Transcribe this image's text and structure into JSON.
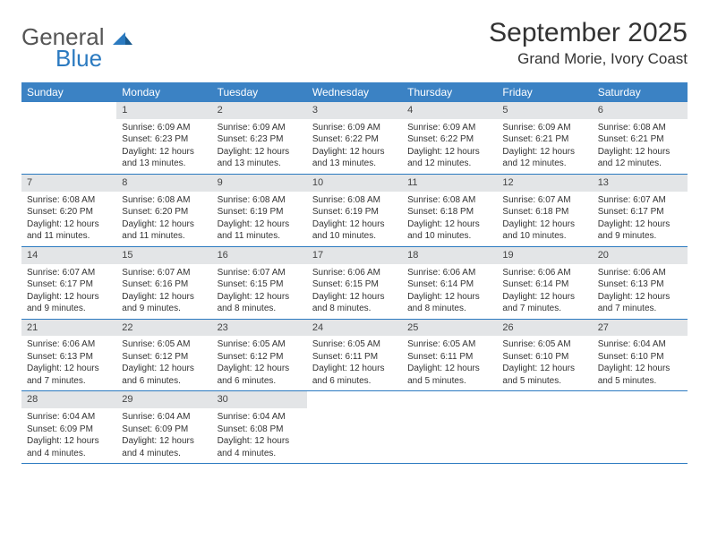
{
  "logo": {
    "word1": "General",
    "word2": "Blue"
  },
  "title": "September 2025",
  "location": "Grand Morie, Ivory Coast",
  "colors": {
    "header_bg": "#3b82c4",
    "header_text": "#ffffff",
    "daynum_bg": "#e3e5e7",
    "week_border": "#2b7ac0",
    "logo_gray": "#555555",
    "logo_blue": "#2b7ac0",
    "text": "#333333"
  },
  "day_names": [
    "Sunday",
    "Monday",
    "Tuesday",
    "Wednesday",
    "Thursday",
    "Friday",
    "Saturday"
  ],
  "weeks": [
    [
      {
        "empty": true
      },
      {
        "day": "1",
        "sunrise": "Sunrise: 6:09 AM",
        "sunset": "Sunset: 6:23 PM",
        "daylight": "Daylight: 12 hours and 13 minutes."
      },
      {
        "day": "2",
        "sunrise": "Sunrise: 6:09 AM",
        "sunset": "Sunset: 6:23 PM",
        "daylight": "Daylight: 12 hours and 13 minutes."
      },
      {
        "day": "3",
        "sunrise": "Sunrise: 6:09 AM",
        "sunset": "Sunset: 6:22 PM",
        "daylight": "Daylight: 12 hours and 13 minutes."
      },
      {
        "day": "4",
        "sunrise": "Sunrise: 6:09 AM",
        "sunset": "Sunset: 6:22 PM",
        "daylight": "Daylight: 12 hours and 12 minutes."
      },
      {
        "day": "5",
        "sunrise": "Sunrise: 6:09 AM",
        "sunset": "Sunset: 6:21 PM",
        "daylight": "Daylight: 12 hours and 12 minutes."
      },
      {
        "day": "6",
        "sunrise": "Sunrise: 6:08 AM",
        "sunset": "Sunset: 6:21 PM",
        "daylight": "Daylight: 12 hours and 12 minutes."
      }
    ],
    [
      {
        "day": "7",
        "sunrise": "Sunrise: 6:08 AM",
        "sunset": "Sunset: 6:20 PM",
        "daylight": "Daylight: 12 hours and 11 minutes."
      },
      {
        "day": "8",
        "sunrise": "Sunrise: 6:08 AM",
        "sunset": "Sunset: 6:20 PM",
        "daylight": "Daylight: 12 hours and 11 minutes."
      },
      {
        "day": "9",
        "sunrise": "Sunrise: 6:08 AM",
        "sunset": "Sunset: 6:19 PM",
        "daylight": "Daylight: 12 hours and 11 minutes."
      },
      {
        "day": "10",
        "sunrise": "Sunrise: 6:08 AM",
        "sunset": "Sunset: 6:19 PM",
        "daylight": "Daylight: 12 hours and 10 minutes."
      },
      {
        "day": "11",
        "sunrise": "Sunrise: 6:08 AM",
        "sunset": "Sunset: 6:18 PM",
        "daylight": "Daylight: 12 hours and 10 minutes."
      },
      {
        "day": "12",
        "sunrise": "Sunrise: 6:07 AM",
        "sunset": "Sunset: 6:18 PM",
        "daylight": "Daylight: 12 hours and 10 minutes."
      },
      {
        "day": "13",
        "sunrise": "Sunrise: 6:07 AM",
        "sunset": "Sunset: 6:17 PM",
        "daylight": "Daylight: 12 hours and 9 minutes."
      }
    ],
    [
      {
        "day": "14",
        "sunrise": "Sunrise: 6:07 AM",
        "sunset": "Sunset: 6:17 PM",
        "daylight": "Daylight: 12 hours and 9 minutes."
      },
      {
        "day": "15",
        "sunrise": "Sunrise: 6:07 AM",
        "sunset": "Sunset: 6:16 PM",
        "daylight": "Daylight: 12 hours and 9 minutes."
      },
      {
        "day": "16",
        "sunrise": "Sunrise: 6:07 AM",
        "sunset": "Sunset: 6:15 PM",
        "daylight": "Daylight: 12 hours and 8 minutes."
      },
      {
        "day": "17",
        "sunrise": "Sunrise: 6:06 AM",
        "sunset": "Sunset: 6:15 PM",
        "daylight": "Daylight: 12 hours and 8 minutes."
      },
      {
        "day": "18",
        "sunrise": "Sunrise: 6:06 AM",
        "sunset": "Sunset: 6:14 PM",
        "daylight": "Daylight: 12 hours and 8 minutes."
      },
      {
        "day": "19",
        "sunrise": "Sunrise: 6:06 AM",
        "sunset": "Sunset: 6:14 PM",
        "daylight": "Daylight: 12 hours and 7 minutes."
      },
      {
        "day": "20",
        "sunrise": "Sunrise: 6:06 AM",
        "sunset": "Sunset: 6:13 PM",
        "daylight": "Daylight: 12 hours and 7 minutes."
      }
    ],
    [
      {
        "day": "21",
        "sunrise": "Sunrise: 6:06 AM",
        "sunset": "Sunset: 6:13 PM",
        "daylight": "Daylight: 12 hours and 7 minutes."
      },
      {
        "day": "22",
        "sunrise": "Sunrise: 6:05 AM",
        "sunset": "Sunset: 6:12 PM",
        "daylight": "Daylight: 12 hours and 6 minutes."
      },
      {
        "day": "23",
        "sunrise": "Sunrise: 6:05 AM",
        "sunset": "Sunset: 6:12 PM",
        "daylight": "Daylight: 12 hours and 6 minutes."
      },
      {
        "day": "24",
        "sunrise": "Sunrise: 6:05 AM",
        "sunset": "Sunset: 6:11 PM",
        "daylight": "Daylight: 12 hours and 6 minutes."
      },
      {
        "day": "25",
        "sunrise": "Sunrise: 6:05 AM",
        "sunset": "Sunset: 6:11 PM",
        "daylight": "Daylight: 12 hours and 5 minutes."
      },
      {
        "day": "26",
        "sunrise": "Sunrise: 6:05 AM",
        "sunset": "Sunset: 6:10 PM",
        "daylight": "Daylight: 12 hours and 5 minutes."
      },
      {
        "day": "27",
        "sunrise": "Sunrise: 6:04 AM",
        "sunset": "Sunset: 6:10 PM",
        "daylight": "Daylight: 12 hours and 5 minutes."
      }
    ],
    [
      {
        "day": "28",
        "sunrise": "Sunrise: 6:04 AM",
        "sunset": "Sunset: 6:09 PM",
        "daylight": "Daylight: 12 hours and 4 minutes."
      },
      {
        "day": "29",
        "sunrise": "Sunrise: 6:04 AM",
        "sunset": "Sunset: 6:09 PM",
        "daylight": "Daylight: 12 hours and 4 minutes."
      },
      {
        "day": "30",
        "sunrise": "Sunrise: 6:04 AM",
        "sunset": "Sunset: 6:08 PM",
        "daylight": "Daylight: 12 hours and 4 minutes."
      },
      {
        "empty": true
      },
      {
        "empty": true
      },
      {
        "empty": true
      },
      {
        "empty": true
      }
    ]
  ]
}
